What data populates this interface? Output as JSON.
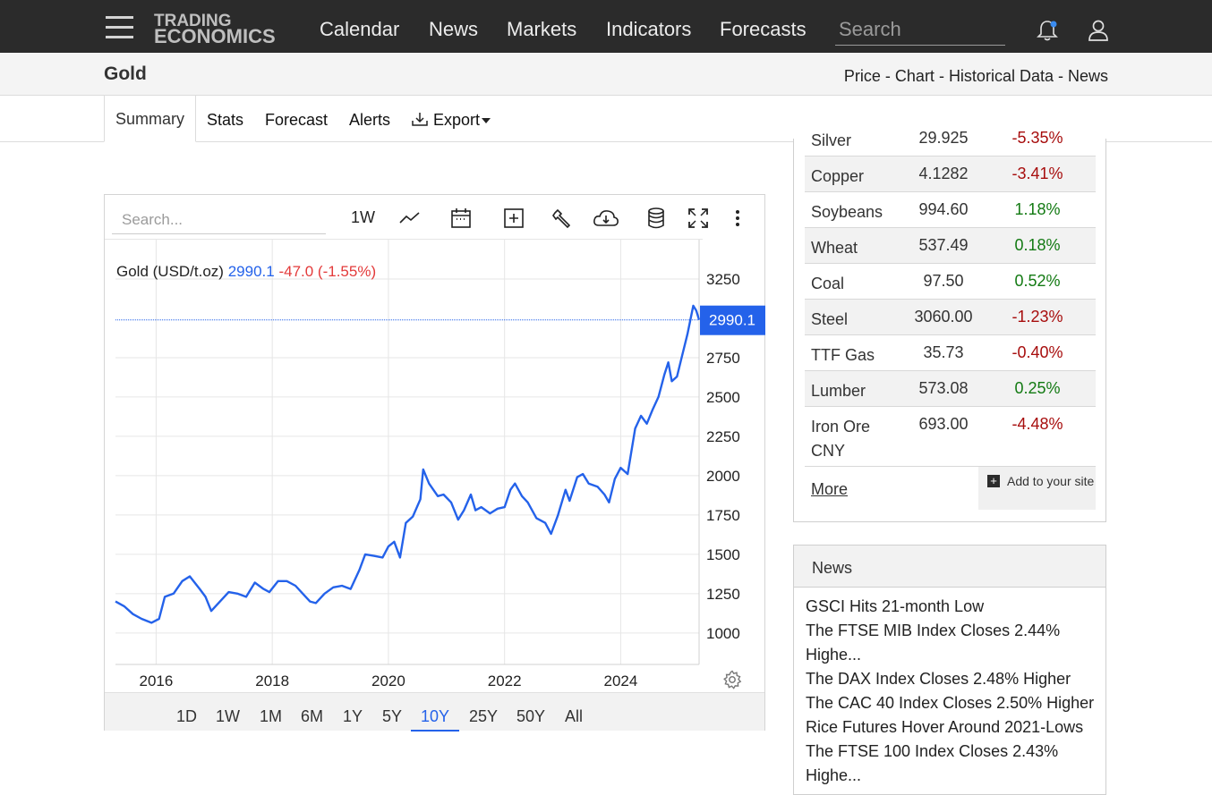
{
  "nav": {
    "logo_line1": "TRADING",
    "logo_line2": "ECONOMICS",
    "items": [
      "Calendar",
      "News",
      "Markets",
      "Indicators",
      "Forecasts"
    ],
    "search_placeholder": "Search",
    "icons": [
      "menu-icon",
      "bell-icon",
      "user-icon"
    ]
  },
  "subheader": {
    "title": "Gold",
    "breadcrumb": [
      "Price",
      "Chart",
      "Historical Data",
      "News"
    ],
    "separator": " - "
  },
  "tabs": {
    "items": [
      "Summary",
      "Stats",
      "Forecast",
      "Alerts"
    ],
    "export_label": "Export",
    "active": "Summary"
  },
  "chart_toolbar": {
    "search_placeholder": "Search...",
    "interval": "1W",
    "icons": [
      "line-chart-icon",
      "calendar-icon",
      "add-compare-icon",
      "wrench-icon",
      "cloud-download-icon",
      "database-icon",
      "fullscreen-icon",
      "more-vert-icon",
      "settings-gear-icon"
    ]
  },
  "chart_legend": {
    "name": "Gold (USD/t.oz)",
    "value": "2990.1",
    "change": "-47.0 (-1.55%)"
  },
  "chart_data": {
    "type": "line",
    "title": "",
    "xlabel": "",
    "ylabel": "",
    "x_ticks": [
      "2016",
      "2018",
      "2020",
      "2022",
      "2024"
    ],
    "y_ticks": [
      1000,
      1250,
      1500,
      1750,
      2000,
      2250,
      2500,
      2750,
      3250
    ],
    "xlim": [
      2015.3,
      2025.35
    ],
    "ylim": [
      800,
      3500
    ],
    "last_value_label": "2990.1",
    "last_value": 2990.1,
    "grid": true,
    "series": [
      {
        "color": "#2462ea",
        "points": [
          [
            2015.3,
            1200
          ],
          [
            2015.45,
            1170
          ],
          [
            2015.6,
            1120
          ],
          [
            2015.75,
            1090
          ],
          [
            2015.92,
            1065
          ],
          [
            2016.05,
            1090
          ],
          [
            2016.15,
            1230
          ],
          [
            2016.3,
            1250
          ],
          [
            2016.45,
            1330
          ],
          [
            2016.58,
            1360
          ],
          [
            2016.75,
            1280
          ],
          [
            2016.85,
            1230
          ],
          [
            2016.95,
            1140
          ],
          [
            2017.1,
            1200
          ],
          [
            2017.25,
            1260
          ],
          [
            2017.4,
            1250
          ],
          [
            2017.55,
            1230
          ],
          [
            2017.7,
            1320
          ],
          [
            2017.85,
            1280
          ],
          [
            2017.95,
            1260
          ],
          [
            2018.1,
            1330
          ],
          [
            2018.25,
            1330
          ],
          [
            2018.4,
            1300
          ],
          [
            2018.55,
            1240
          ],
          [
            2018.65,
            1200
          ],
          [
            2018.75,
            1190
          ],
          [
            2018.9,
            1250
          ],
          [
            2019.05,
            1290
          ],
          [
            2019.2,
            1300
          ],
          [
            2019.35,
            1280
          ],
          [
            2019.5,
            1400
          ],
          [
            2019.6,
            1500
          ],
          [
            2019.75,
            1490
          ],
          [
            2019.9,
            1480
          ],
          [
            2020.0,
            1550
          ],
          [
            2020.1,
            1580
          ],
          [
            2020.2,
            1480
          ],
          [
            2020.3,
            1700
          ],
          [
            2020.42,
            1740
          ],
          [
            2020.55,
            1850
          ],
          [
            2020.6,
            2040
          ],
          [
            2020.7,
            1950
          ],
          [
            2020.85,
            1870
          ],
          [
            2020.95,
            1880
          ],
          [
            2021.08,
            1830
          ],
          [
            2021.2,
            1720
          ],
          [
            2021.3,
            1780
          ],
          [
            2021.42,
            1880
          ],
          [
            2021.5,
            1780
          ],
          [
            2021.6,
            1800
          ],
          [
            2021.75,
            1760
          ],
          [
            2021.88,
            1790
          ],
          [
            2022.0,
            1800
          ],
          [
            2022.1,
            1910
          ],
          [
            2022.18,
            1950
          ],
          [
            2022.3,
            1870
          ],
          [
            2022.4,
            1830
          ],
          [
            2022.55,
            1730
          ],
          [
            2022.7,
            1700
          ],
          [
            2022.8,
            1630
          ],
          [
            2022.92,
            1750
          ],
          [
            2023.05,
            1910
          ],
          [
            2023.12,
            1840
          ],
          [
            2023.25,
            1990
          ],
          [
            2023.35,
            2010
          ],
          [
            2023.45,
            1950
          ],
          [
            2023.6,
            1930
          ],
          [
            2023.72,
            1880
          ],
          [
            2023.8,
            1830
          ],
          [
            2023.9,
            1980
          ],
          [
            2024.0,
            2050
          ],
          [
            2024.12,
            2010
          ],
          [
            2024.25,
            2300
          ],
          [
            2024.35,
            2380
          ],
          [
            2024.45,
            2330
          ],
          [
            2024.55,
            2420
          ],
          [
            2024.65,
            2500
          ],
          [
            2024.75,
            2640
          ],
          [
            2024.82,
            2720
          ],
          [
            2024.88,
            2600
          ],
          [
            2024.97,
            2630
          ],
          [
            2025.05,
            2750
          ],
          [
            2025.15,
            2900
          ],
          [
            2025.25,
            3080
          ],
          [
            2025.3,
            3050
          ],
          [
            2025.35,
            2990
          ]
        ]
      }
    ]
  },
  "range_buttons": [
    "1D",
    "1W",
    "1M",
    "6M",
    "1Y",
    "5Y",
    "10Y",
    "25Y",
    "50Y",
    "All"
  ],
  "active_range": "10Y",
  "commodities": [
    {
      "name": "Silver",
      "price": "29.925",
      "change": "-5.35%",
      "dir": "neg"
    },
    {
      "name": "Copper",
      "price": "4.1282",
      "change": "-3.41%",
      "dir": "neg"
    },
    {
      "name": "Soybeans",
      "price": "994.60",
      "change": "1.18%",
      "dir": "pos"
    },
    {
      "name": "Wheat",
      "price": "537.49",
      "change": "0.18%",
      "dir": "pos"
    },
    {
      "name": "Coal",
      "price": "97.50",
      "change": "0.52%",
      "dir": "pos"
    },
    {
      "name": "Steel",
      "price": "3060.00",
      "change": "-1.23%",
      "dir": "neg"
    },
    {
      "name": "TTF Gas",
      "price": "35.73",
      "change": "-0.40%",
      "dir": "neg"
    },
    {
      "name": "Lumber",
      "price": "573.08",
      "change": "0.25%",
      "dir": "pos"
    },
    {
      "name": "Iron Ore CNY",
      "price": "693.00",
      "change": "-4.48%",
      "dir": "neg"
    }
  ],
  "commodities_more": "More",
  "add_to_site": "Add to your site",
  "news": {
    "title": "News",
    "items": [
      "GSCI Hits 21-month Low",
      "The FTSE MIB Index Closes 2.44% Highe...",
      "The DAX Index Closes 2.48% Higher",
      "The CAC 40 Index Closes 2.50% Higher",
      "Rice Futures Hover Around 2021-Lows",
      "The FTSE 100 Index Closes 2.43% Highe..."
    ]
  },
  "colors": {
    "topbar_bg": "#2b2b2b",
    "accent_blue": "#2462ea",
    "negative_red": "#a70d0d",
    "positive_green": "#137a13",
    "legend_change_red": "#e33a3a"
  }
}
